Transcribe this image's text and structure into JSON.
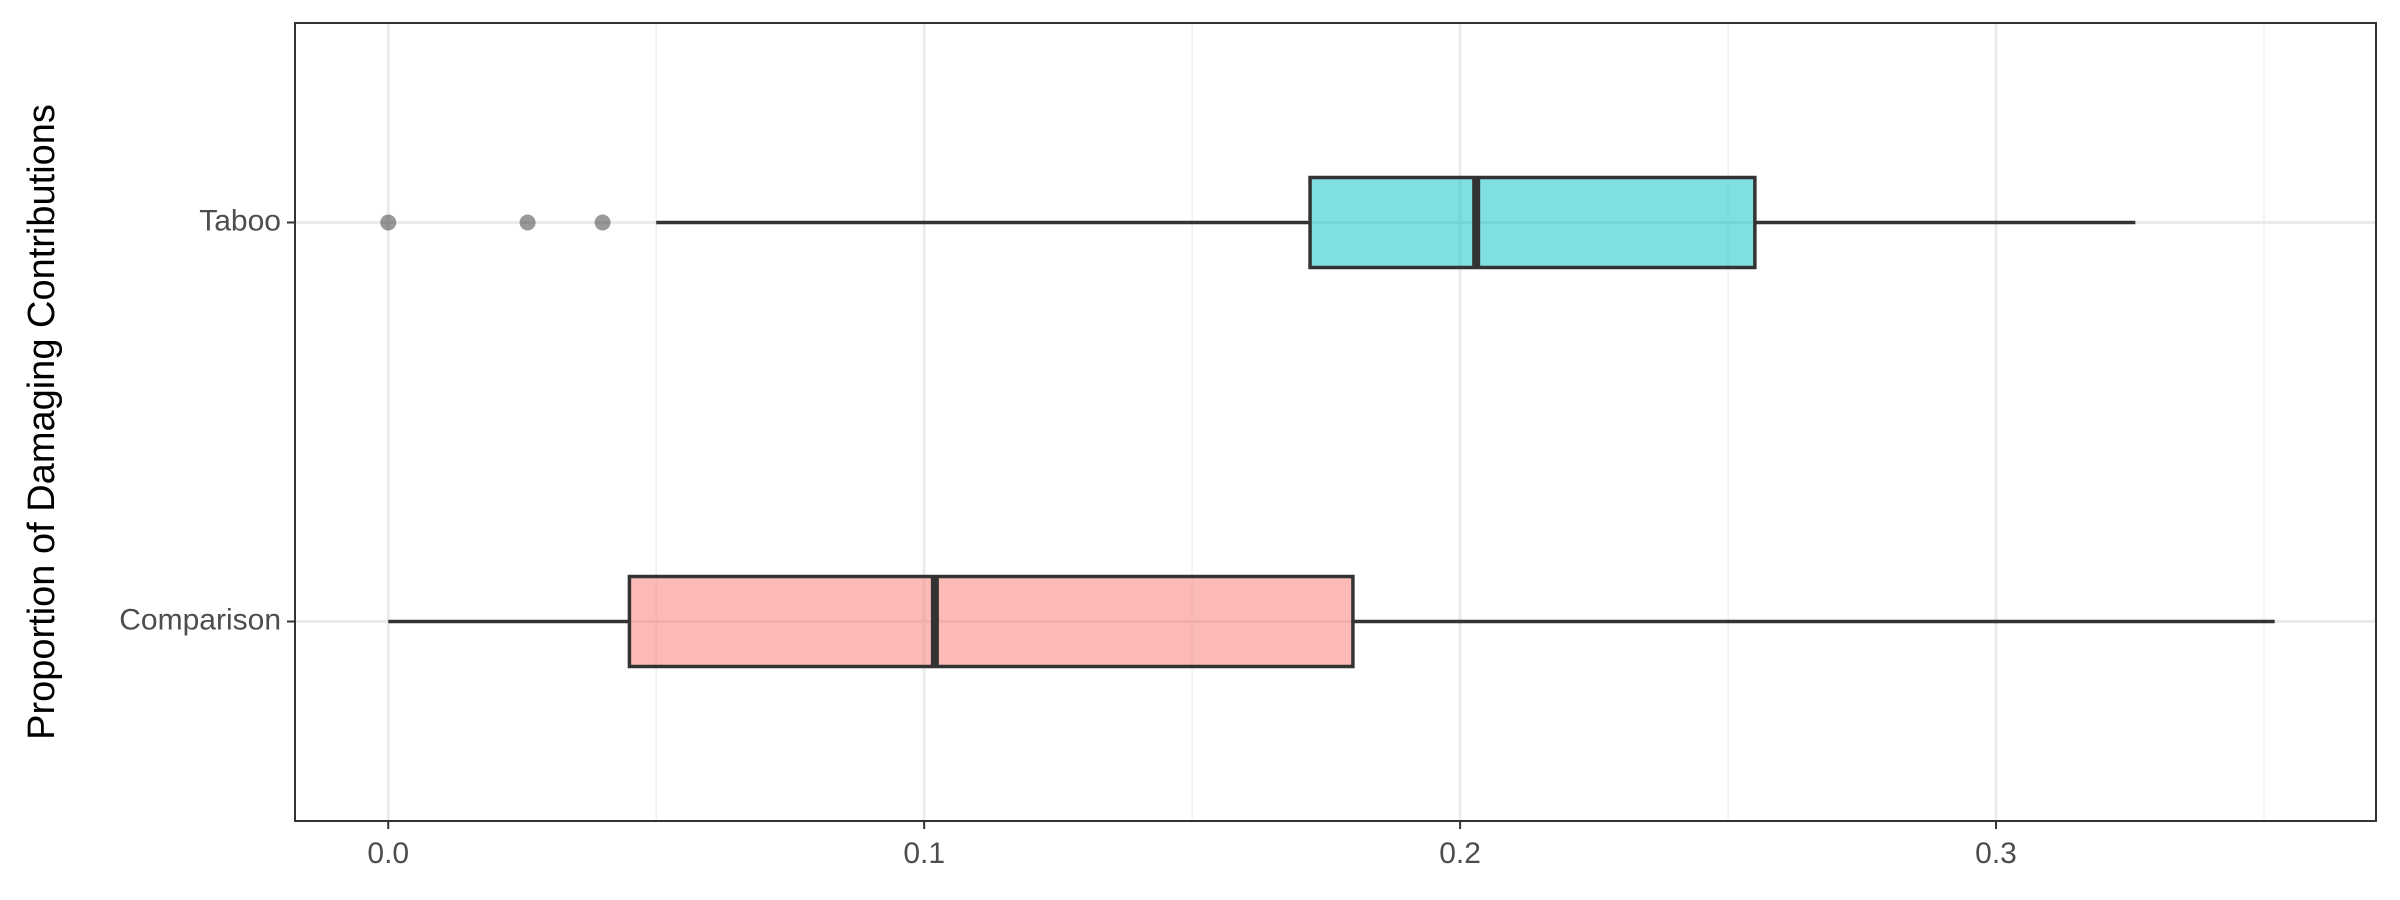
{
  "chart_data": {
    "type": "boxplot",
    "orientation": "horizontal",
    "y_label": "Proportion of Damaging Contributions",
    "series": [
      {
        "name": "Taboo",
        "color": "#00BFC4",
        "whisker_low": 0.05,
        "q1": 0.172,
        "median": 0.203,
        "q3": 0.255,
        "whisker_high": 0.326,
        "outliers": [
          0,
          0.026,
          0.04
        ]
      },
      {
        "name": "Comparison",
        "color": "#F8766D",
        "whisker_low": 0,
        "q1": 0.045,
        "median": 0.102,
        "q3": 0.18,
        "whisker_high": 0.352,
        "outliers": []
      }
    ],
    "xlim": [
      -0.0174,
      0.3709
    ],
    "xticks": [
      {
        "value": 0,
        "label": "0.0"
      },
      0.1,
      0.2,
      0.3
    ],
    "minor_xticks": [
      0.05,
      0.15,
      0.25,
      0.35
    ],
    "grid": true
  }
}
